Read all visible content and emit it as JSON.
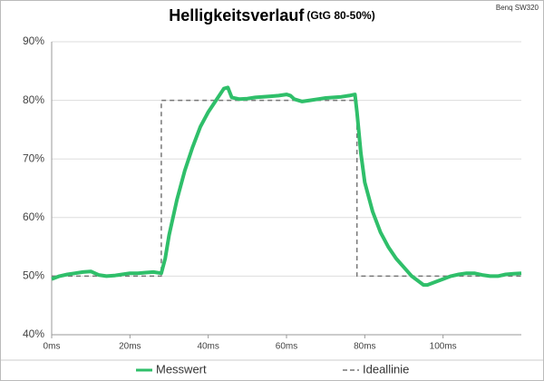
{
  "chart_data": {
    "type": "line",
    "title": "Helligkeitsverlauf",
    "subtitle": "(GtG 80-50%)",
    "source": "Benq SW320",
    "xlim": [
      0,
      120
    ],
    "xticks": [
      {
        "value": 0,
        "label": "0ms"
      },
      {
        "value": 20,
        "label": "20ms"
      },
      {
        "value": 40,
        "label": "40ms"
      },
      {
        "value": 60,
        "label": "60ms"
      },
      {
        "value": 80,
        "label": "80ms"
      },
      {
        "value": 100,
        "label": "100ms"
      }
    ],
    "ylim": [
      40,
      90
    ],
    "yticks": [
      {
        "value": 40,
        "label": "40%"
      },
      {
        "value": 50,
        "label": "50%"
      },
      {
        "value": 60,
        "label": "60%"
      },
      {
        "value": 70,
        "label": "70%"
      },
      {
        "value": 80,
        "label": "80%"
      },
      {
        "value": 90,
        "label": "90%"
      }
    ],
    "grid": true,
    "legend": "bottom",
    "series": [
      {
        "name": "Messwert",
        "color": "#2fbf6a",
        "dashed": false,
        "x": [
          0,
          2,
          4,
          6,
          8,
          10,
          12,
          14,
          16,
          18,
          20,
          22,
          24,
          26,
          28,
          29,
          30,
          32,
          34,
          36,
          38,
          40,
          42,
          44,
          45,
          46,
          48,
          50,
          52,
          54,
          56,
          58,
          60,
          61,
          62,
          64,
          66,
          68,
          70,
          72,
          74,
          76,
          77.5,
          78,
          79,
          80,
          82,
          84,
          86,
          88,
          90,
          92,
          94,
          95,
          96,
          98,
          100,
          102,
          104,
          106,
          108,
          110,
          112,
          114,
          116,
          118,
          120
        ],
        "values": [
          49.5,
          50,
          50.3,
          50.5,
          50.7,
          50.8,
          50.2,
          50,
          50.1,
          50.3,
          50.5,
          50.5,
          50.6,
          50.7,
          50.5,
          53,
          57,
          63,
          68,
          72,
          75.5,
          78,
          80,
          82,
          82.2,
          80.5,
          80.2,
          80.3,
          80.5,
          80.6,
          80.7,
          80.8,
          81,
          80.8,
          80.2,
          79.8,
          80,
          80.2,
          80.4,
          80.5,
          80.6,
          80.8,
          81,
          78,
          71,
          66,
          61,
          57.5,
          55,
          53,
          51.5,
          50,
          49,
          48.5,
          48.5,
          49,
          49.5,
          50,
          50.3,
          50.5,
          50.5,
          50.2,
          50,
          50,
          50.3,
          50.4,
          50.5
        ]
      },
      {
        "name": "Ideallinie",
        "color": "#777777",
        "dashed": true,
        "x": [
          0,
          28,
          28,
          78,
          78,
          120
        ],
        "values": [
          50,
          50,
          80,
          80,
          50,
          50
        ]
      }
    ]
  }
}
